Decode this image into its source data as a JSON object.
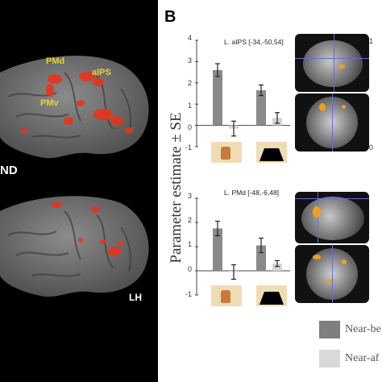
{
  "panel_a": {
    "labels": {
      "pmd": "PMd",
      "aips": "aIPS",
      "pmv": "PMv",
      "nd": "ND",
      "lh": "LH"
    }
  },
  "panel_b": {
    "letter": "B",
    "ylabel": "Parameter estimate ± SE",
    "right_ticks": {
      "top": "1",
      "middle": "0"
    },
    "plots": [
      {
        "title": "L. aIPS [-34,-50,54]",
        "ticks": [
          "4",
          "3",
          "2",
          "1",
          "0",
          "-1"
        ],
        "ylim": [
          -1,
          4
        ],
        "groups": [
          {
            "dark": 2.6,
            "dark_err": 0.3,
            "light": -0.15,
            "light_err": 0.35
          },
          {
            "dark": 1.65,
            "dark_err": 0.25,
            "light": 0.35,
            "light_err": 0.25
          }
        ]
      },
      {
        "title": "L. PMd [-48,-6,48]",
        "ticks": [
          "3",
          "2",
          "1",
          "0",
          "-1"
        ],
        "ylim": [
          -1,
          3
        ],
        "groups": [
          {
            "dark": 1.75,
            "dark_err": 0.3,
            "light": -0.05,
            "light_err": 0.3
          },
          {
            "dark": 1.05,
            "dark_err": 0.3,
            "light": 0.3,
            "light_err": 0.12
          }
        ]
      }
    ]
  },
  "legend": {
    "items": [
      {
        "label": "Near-be",
        "color": "#7f7f7f"
      },
      {
        "label": "Near-af",
        "color": "#d9d9d9"
      }
    ]
  },
  "colors": {
    "dark_bar": "#8a8a8a",
    "light_bar": "#d4d4d4",
    "activation": "#e8341c",
    "brain": "#6e6e6e"
  }
}
